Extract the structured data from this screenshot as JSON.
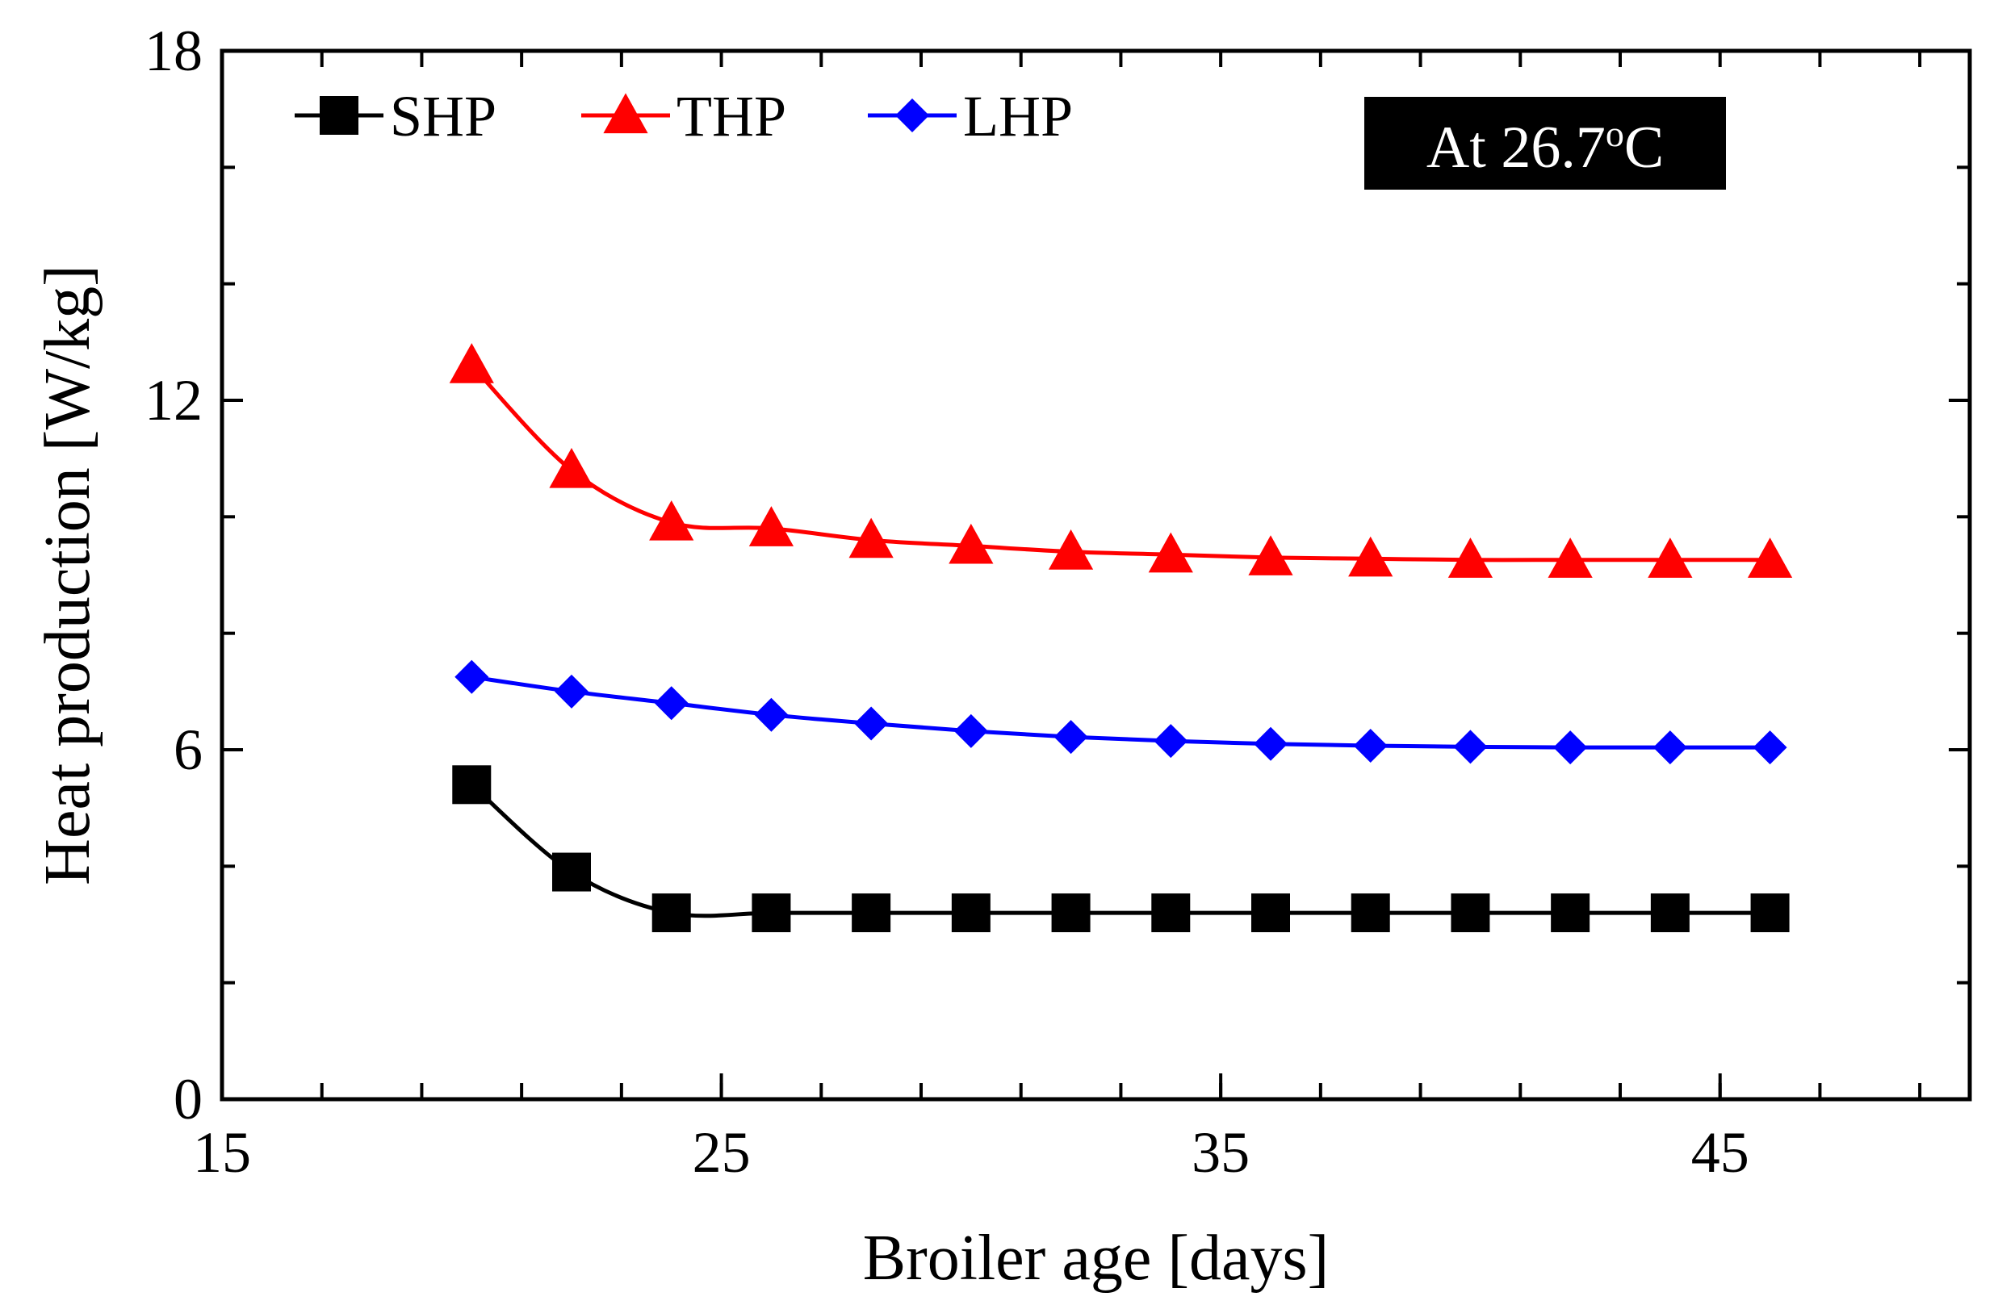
{
  "chart_data": {
    "type": "line",
    "title": "",
    "xlabel": "Broiler age [days]",
    "ylabel": "Heat production [W/kg]",
    "xlim": [
      15,
      50
    ],
    "ylim": [
      0,
      18
    ],
    "xticks": [
      15,
      25,
      35,
      45
    ],
    "yticks": [
      0,
      6,
      12,
      18
    ],
    "x_minor_step": 2,
    "y_minor_step": 2,
    "grid": false,
    "legend_position": "top-left",
    "annotation": {
      "text": "At 26.7",
      "superscript": "o",
      "suffix": "C",
      "position": "top-right"
    },
    "x": [
      20,
      22,
      24,
      26,
      28,
      30,
      32,
      34,
      36,
      38,
      40,
      42,
      44,
      46
    ],
    "series": [
      {
        "name": "SHP",
        "color": "#000000",
        "marker": "square",
        "values": [
          5.4,
          3.9,
          3.2,
          3.2,
          3.2,
          3.2,
          3.2,
          3.2,
          3.2,
          3.2,
          3.2,
          3.2,
          3.2,
          3.2
        ]
      },
      {
        "name": "THP",
        "color": "#ff0000",
        "marker": "triangle",
        "values": [
          12.6,
          10.8,
          9.9,
          9.8,
          9.6,
          9.5,
          9.4,
          9.35,
          9.3,
          9.28,
          9.26,
          9.26,
          9.26,
          9.26
        ]
      },
      {
        "name": "LHP",
        "color": "#0000ff",
        "marker": "diamond",
        "values": [
          7.25,
          7.0,
          6.8,
          6.6,
          6.45,
          6.32,
          6.22,
          6.15,
          6.1,
          6.07,
          6.05,
          6.04,
          6.04,
          6.04
        ]
      }
    ]
  }
}
